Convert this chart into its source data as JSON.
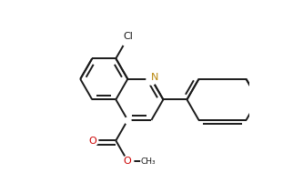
{
  "bg_color": "#ffffff",
  "bond_color": "#1a1a1a",
  "atom_colors": {
    "N": "#b8860b",
    "O": "#cc0000",
    "Cl": "#1a1a1a",
    "C": "#1a1a1a"
  },
  "bond_width": 1.4,
  "figsize": [
    3.22,
    2.12
  ],
  "dpi": 100
}
